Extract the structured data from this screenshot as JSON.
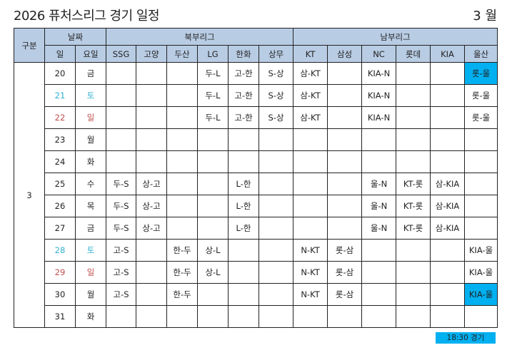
{
  "title": "2026 퓨처스리그 경기 일정",
  "month": "3 월",
  "header": {
    "group": "구분",
    "date": "날짜",
    "north": "북부리그",
    "south": "남부리그",
    "day": "일",
    "weekday": "요일",
    "teams": [
      "SSG",
      "고양",
      "두산",
      "LG",
      "한화",
      "상무",
      "KT",
      "삼성",
      "NC",
      "롯데",
      "KIA",
      "울산"
    ]
  },
  "group_value": "3",
  "colors": {
    "header_bg": "#b8cce4",
    "highlight": "#00b0f0",
    "saturday": "#31b0d0",
    "sunday": "#c0504d"
  },
  "rows": [
    {
      "day": "20",
      "weekday": "금",
      "type": "weekday",
      "cells": [
        "",
        "",
        "",
        "두-L",
        "고-한",
        "S-상",
        "삼-KT",
        "",
        "KIA-N",
        "",
        "",
        "롯-울"
      ],
      "highlight": [
        11
      ]
    },
    {
      "day": "21",
      "weekday": "토",
      "type": "saturday",
      "cells": [
        "",
        "",
        "",
        "두-L",
        "고-한",
        "S-상",
        "삼-KT",
        "",
        "KIA-N",
        "",
        "",
        "롯-울"
      ],
      "highlight": []
    },
    {
      "day": "22",
      "weekday": "일",
      "type": "sunday",
      "cells": [
        "",
        "",
        "",
        "두-L",
        "고-한",
        "S-상",
        "삼-KT",
        "",
        "KIA-N",
        "",
        "",
        "롯-울"
      ],
      "highlight": []
    },
    {
      "day": "23",
      "weekday": "월",
      "type": "weekday",
      "cells": [
        "",
        "",
        "",
        "",
        "",
        "",
        "",
        "",
        "",
        "",
        "",
        ""
      ],
      "highlight": []
    },
    {
      "day": "24",
      "weekday": "화",
      "type": "weekday",
      "cells": [
        "",
        "",
        "",
        "",
        "",
        "",
        "",
        "",
        "",
        "",
        "",
        ""
      ],
      "highlight": []
    },
    {
      "day": "25",
      "weekday": "수",
      "type": "weekday",
      "cells": [
        "두-S",
        "상-고",
        "",
        "",
        "L-한",
        "",
        "",
        "",
        "울-N",
        "KT-롯",
        "삼-KIA",
        ""
      ],
      "highlight": []
    },
    {
      "day": "26",
      "weekday": "목",
      "type": "weekday",
      "cells": [
        "두-S",
        "상-고",
        "",
        "",
        "L-한",
        "",
        "",
        "",
        "울-N",
        "KT-롯",
        "삼-KIA",
        ""
      ],
      "highlight": []
    },
    {
      "day": "27",
      "weekday": "금",
      "type": "weekday",
      "cells": [
        "두-S",
        "상-고",
        "",
        "",
        "L-한",
        "",
        "",
        "",
        "울-N",
        "KT-롯",
        "삼-KIA",
        ""
      ],
      "highlight": []
    },
    {
      "day": "28",
      "weekday": "토",
      "type": "saturday",
      "cells": [
        "고-S",
        "",
        "한-두",
        "상-L",
        "",
        "",
        "N-KT",
        "롯-삼",
        "",
        "",
        "",
        "KIA-울"
      ],
      "highlight": []
    },
    {
      "day": "29",
      "weekday": "일",
      "type": "sunday",
      "cells": [
        "고-S",
        "",
        "한-두",
        "상-L",
        "",
        "",
        "N-KT",
        "롯-삼",
        "",
        "",
        "",
        "KIA-울"
      ],
      "highlight": []
    },
    {
      "day": "30",
      "weekday": "월",
      "type": "weekday",
      "cells": [
        "고-S",
        "",
        "한-두",
        "",
        "",
        "",
        "N-KT",
        "롯-삼",
        "",
        "",
        "",
        "KIA-울"
      ],
      "highlight": [
        11
      ]
    },
    {
      "day": "31",
      "weekday": "화",
      "type": "weekday",
      "cells": [
        "",
        "",
        "",
        "",
        "",
        "",
        "",
        "",
        "",
        "",
        "",
        ""
      ],
      "highlight": []
    }
  ],
  "legend": "18:30 경기"
}
